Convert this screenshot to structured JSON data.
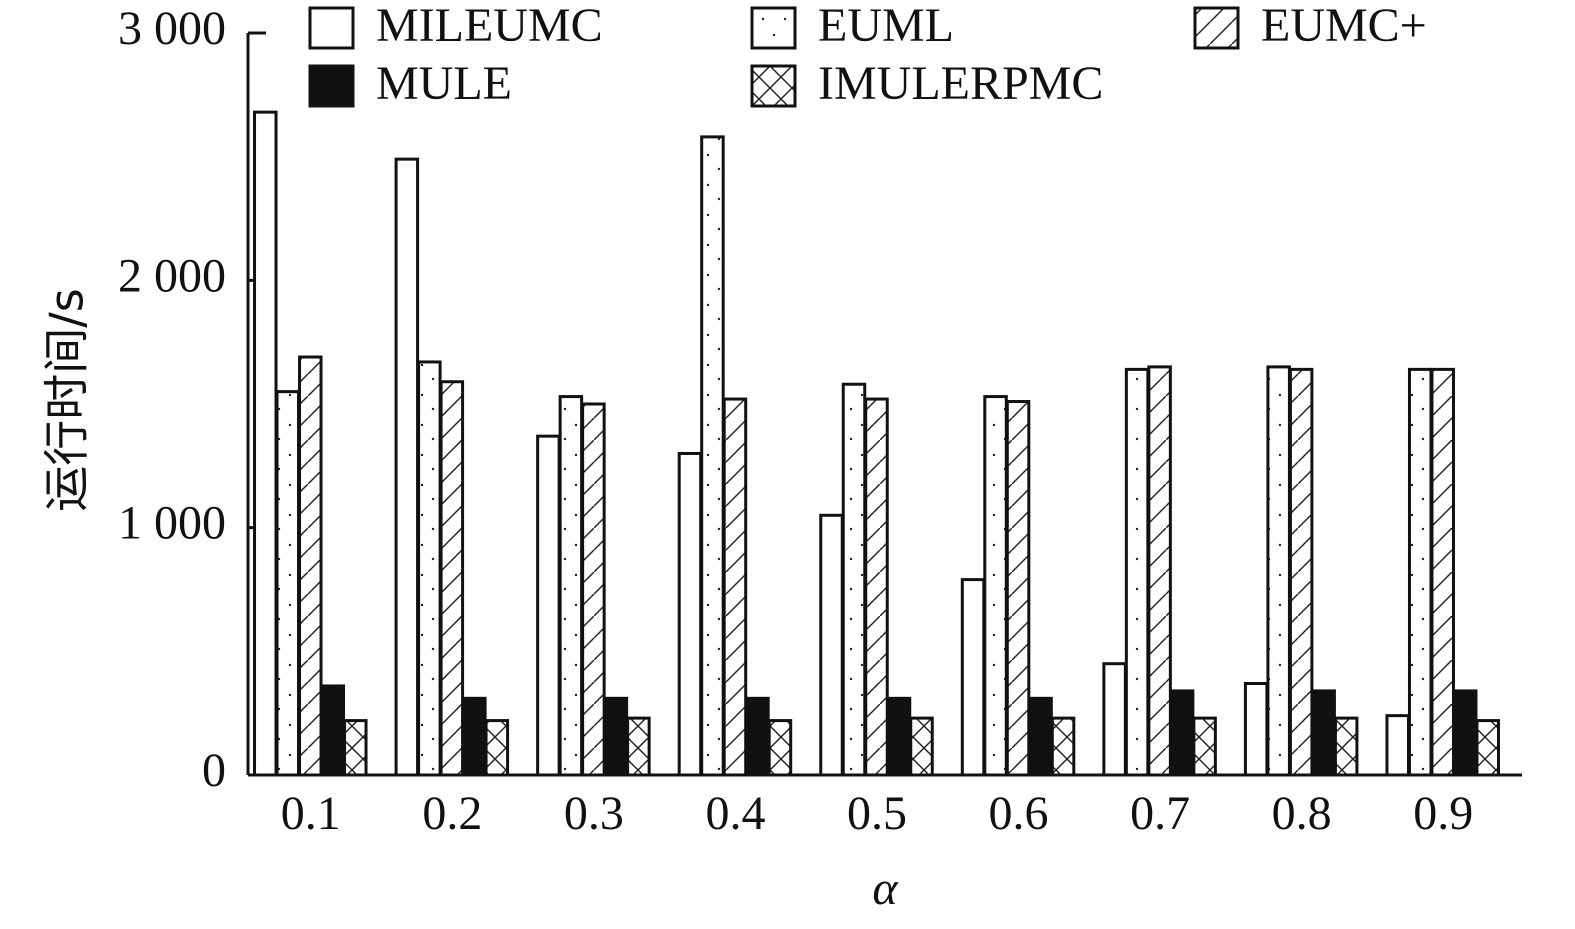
{
  "chart_data": {
    "type": "bar",
    "x_label": "α",
    "y_label": "运行时间/s",
    "categories": [
      "0.1",
      "0.2",
      "0.3",
      "0.4",
      "0.5",
      "0.6",
      "0.7",
      "0.8",
      "0.9"
    ],
    "series": [
      {
        "name": "MILEUMC",
        "color": "#ffffff",
        "pattern": "none",
        "values": [
          2680,
          2490,
          1370,
          1300,
          1050,
          790,
          450,
          370,
          240
        ]
      },
      {
        "name": "EUML",
        "color": "#ffffff",
        "pattern": "dots",
        "values": [
          1550,
          1670,
          1530,
          2580,
          1580,
          1530,
          1640,
          1650,
          1640
        ]
      },
      {
        "name": "EUMC+",
        "color": "#ffffff",
        "pattern": "hatch",
        "values": [
          1690,
          1590,
          1500,
          1520,
          1520,
          1510,
          1650,
          1640,
          1640
        ]
      },
      {
        "name": "MULE",
        "color": "#111111",
        "pattern": "none",
        "values": [
          360,
          310,
          310,
          310,
          310,
          310,
          340,
          340,
          340
        ]
      },
      {
        "name": "IMULERPMC",
        "color": "#ffffff",
        "pattern": "cross",
        "values": [
          220,
          220,
          230,
          220,
          230,
          230,
          230,
          230,
          220
        ]
      }
    ],
    "ylim": [
      0,
      3000
    ],
    "yticks": [
      0,
      {
        "value": 1000,
        "label": "1 000"
      },
      {
        "value": 2000,
        "label": "2 000"
      },
      {
        "value": 3000,
        "label": "3 000"
      }
    ]
  }
}
